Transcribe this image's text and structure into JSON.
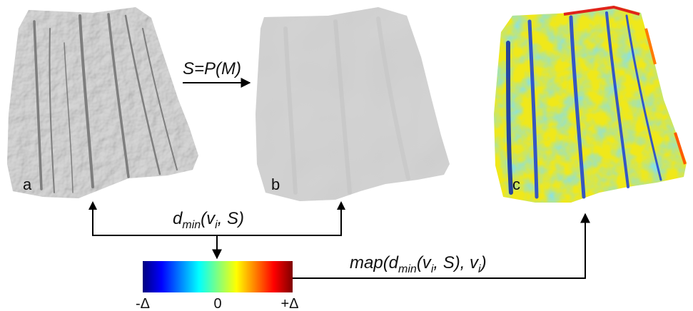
{
  "panels": {
    "a": {
      "letter": "a"
    },
    "b": {
      "letter": "b"
    },
    "c": {
      "letter": "c"
    }
  },
  "labels": {
    "projection": "S=P(M)",
    "dmin": {
      "base": "d",
      "sub": "min",
      "open": "(v",
      "vsub": "i",
      "rest": ", S)"
    },
    "map": {
      "base": "map(d",
      "sub": "min",
      "open": "(v",
      "vsub": "i",
      "mid": ", S), v",
      "vsub2": "i",
      "close": ")"
    }
  },
  "colorbar": {
    "min_label": "-Δ",
    "mid_label": "0",
    "max_label": "+Δ",
    "stops": [
      "#00007f",
      "#0000ff",
      "#0080ff",
      "#00ffff",
      "#80ff80",
      "#ffff00",
      "#ff8000",
      "#ff0000",
      "#7f0000"
    ]
  },
  "colors": {
    "mesh_gray": "#d4d4d4",
    "mesh_shadow": "#8c8c8c",
    "arrow": "#000000"
  }
}
